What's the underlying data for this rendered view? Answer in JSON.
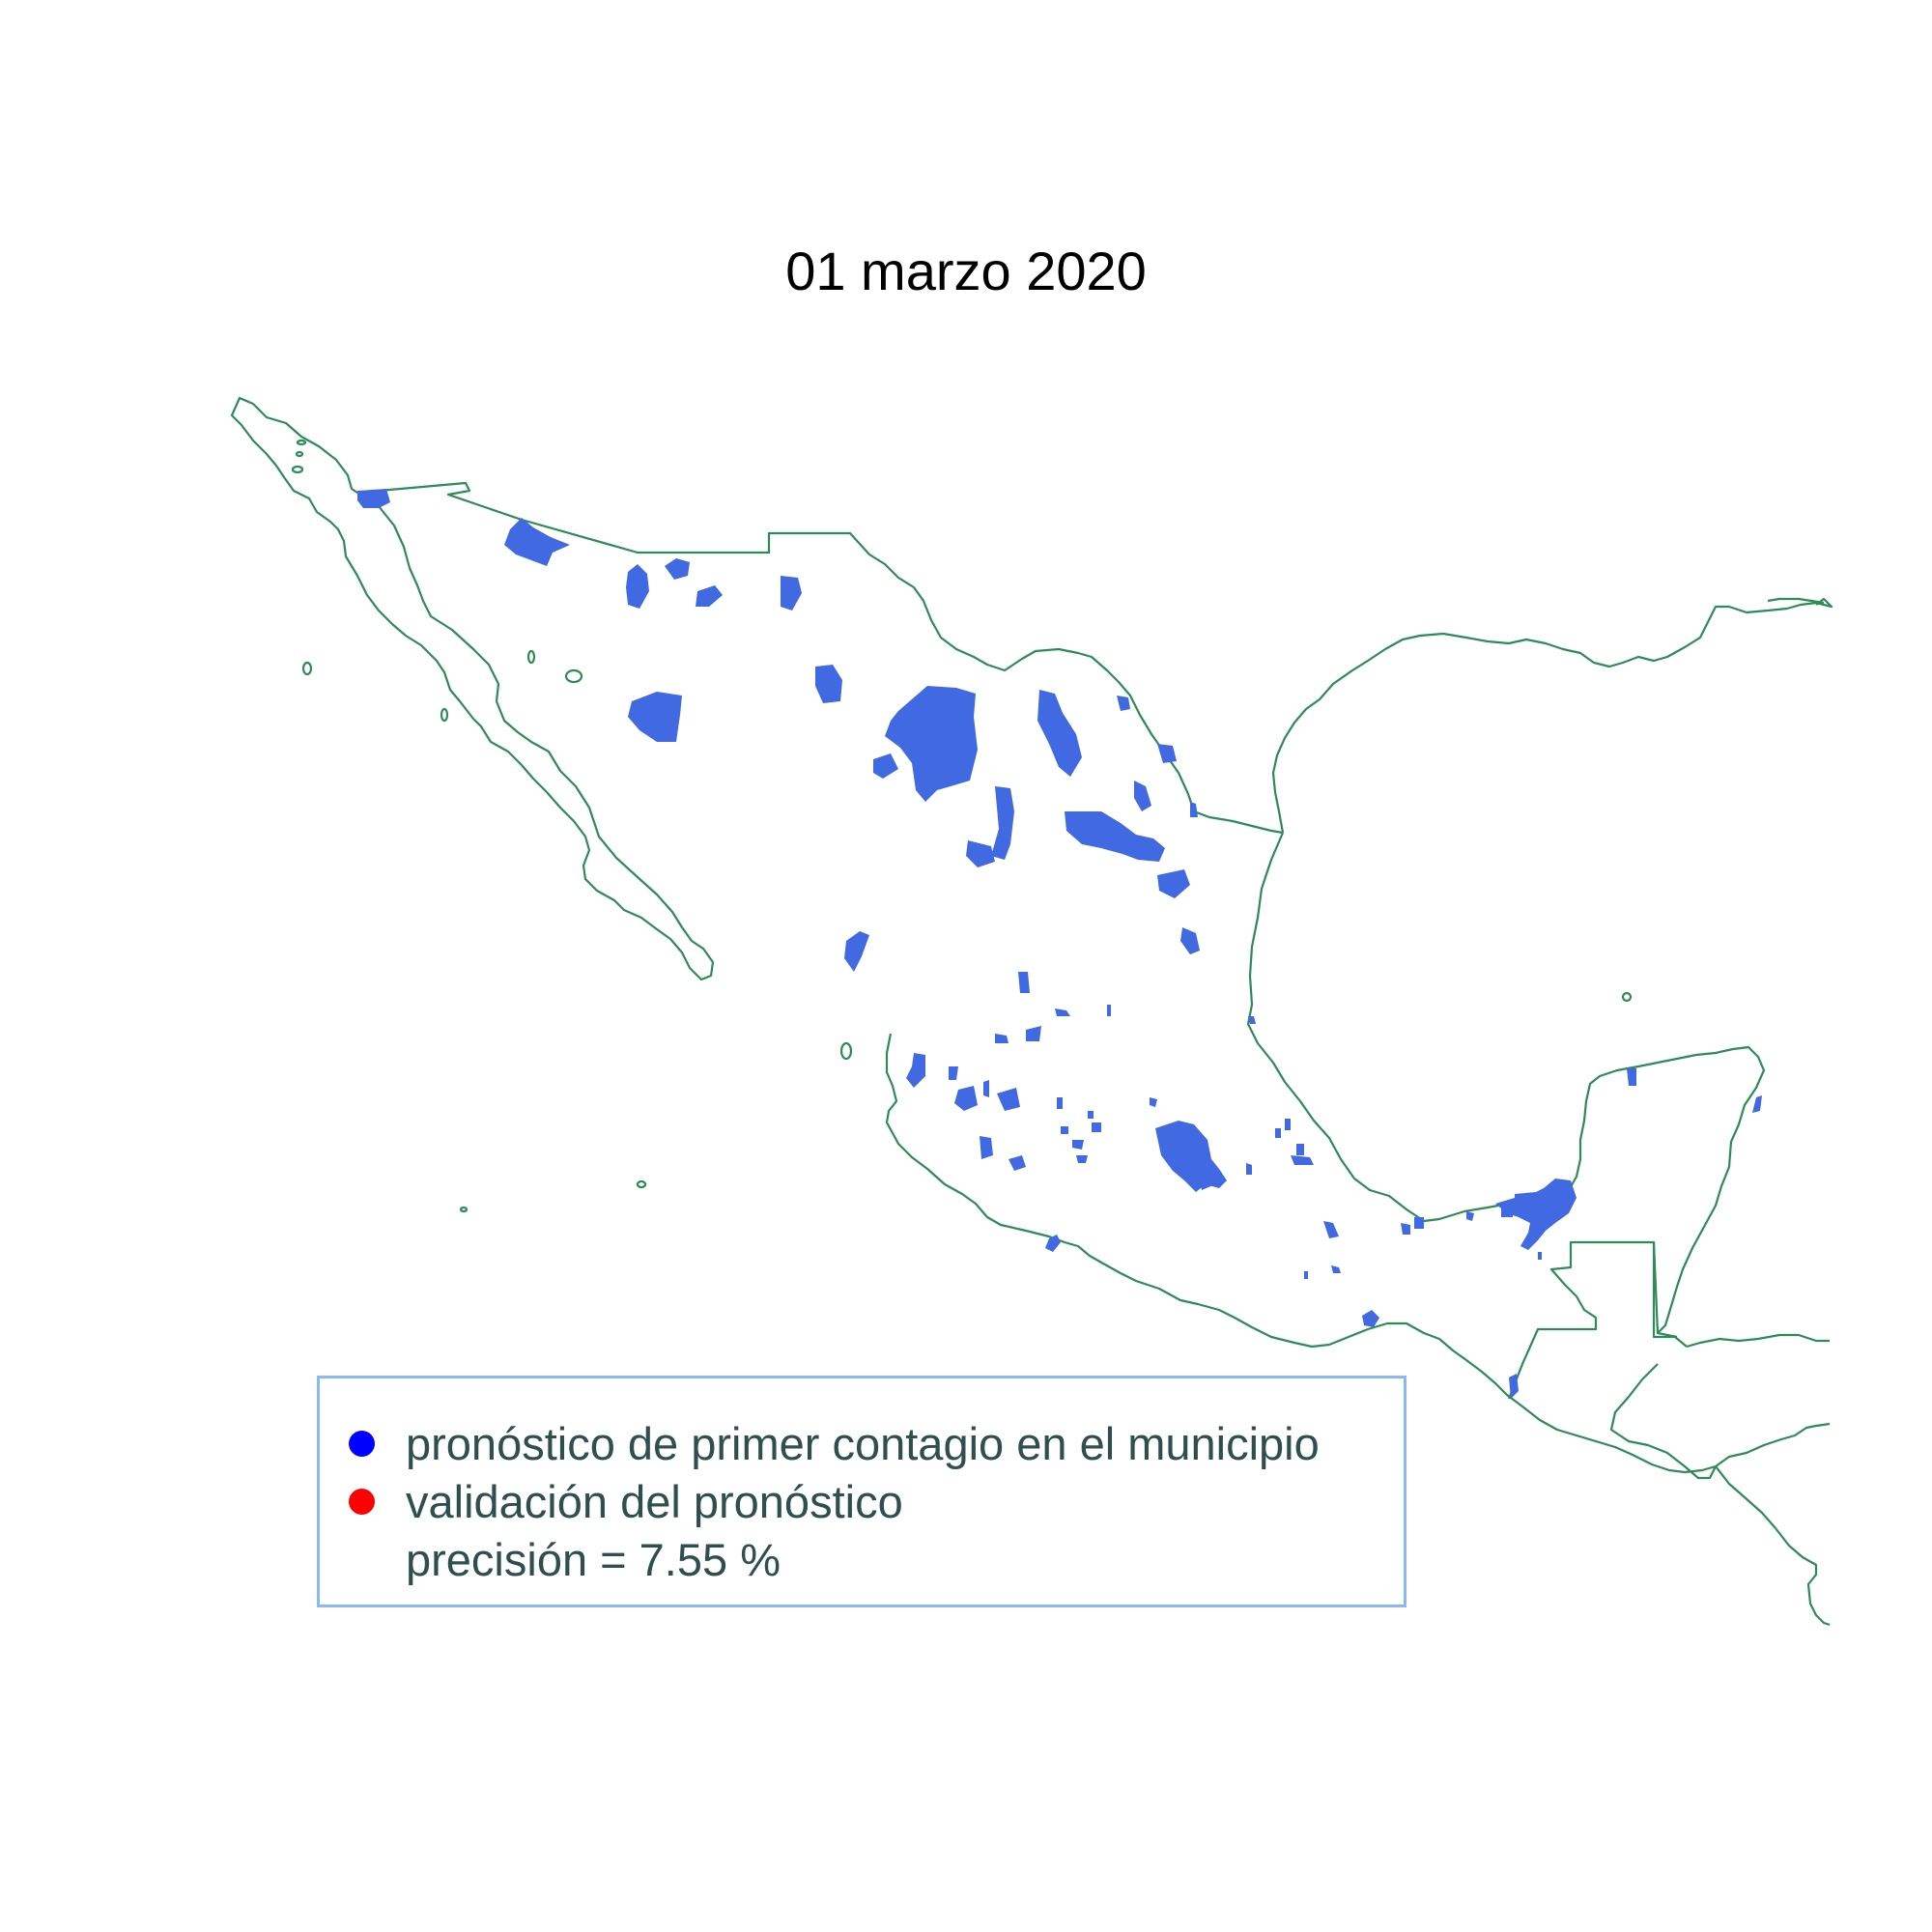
{
  "title": "01 marzo 2020",
  "legend": {
    "items": [
      {
        "label": "pronóstico de primer contagio en el municipio",
        "color": "#0000ff"
      },
      {
        "label": "validación del pronóstico",
        "color": "#ff0000"
      }
    ],
    "note": "precisión = 7.55 %"
  },
  "colors": {
    "border": "#2e8b57",
    "region_fill": "#4169e1"
  }
}
